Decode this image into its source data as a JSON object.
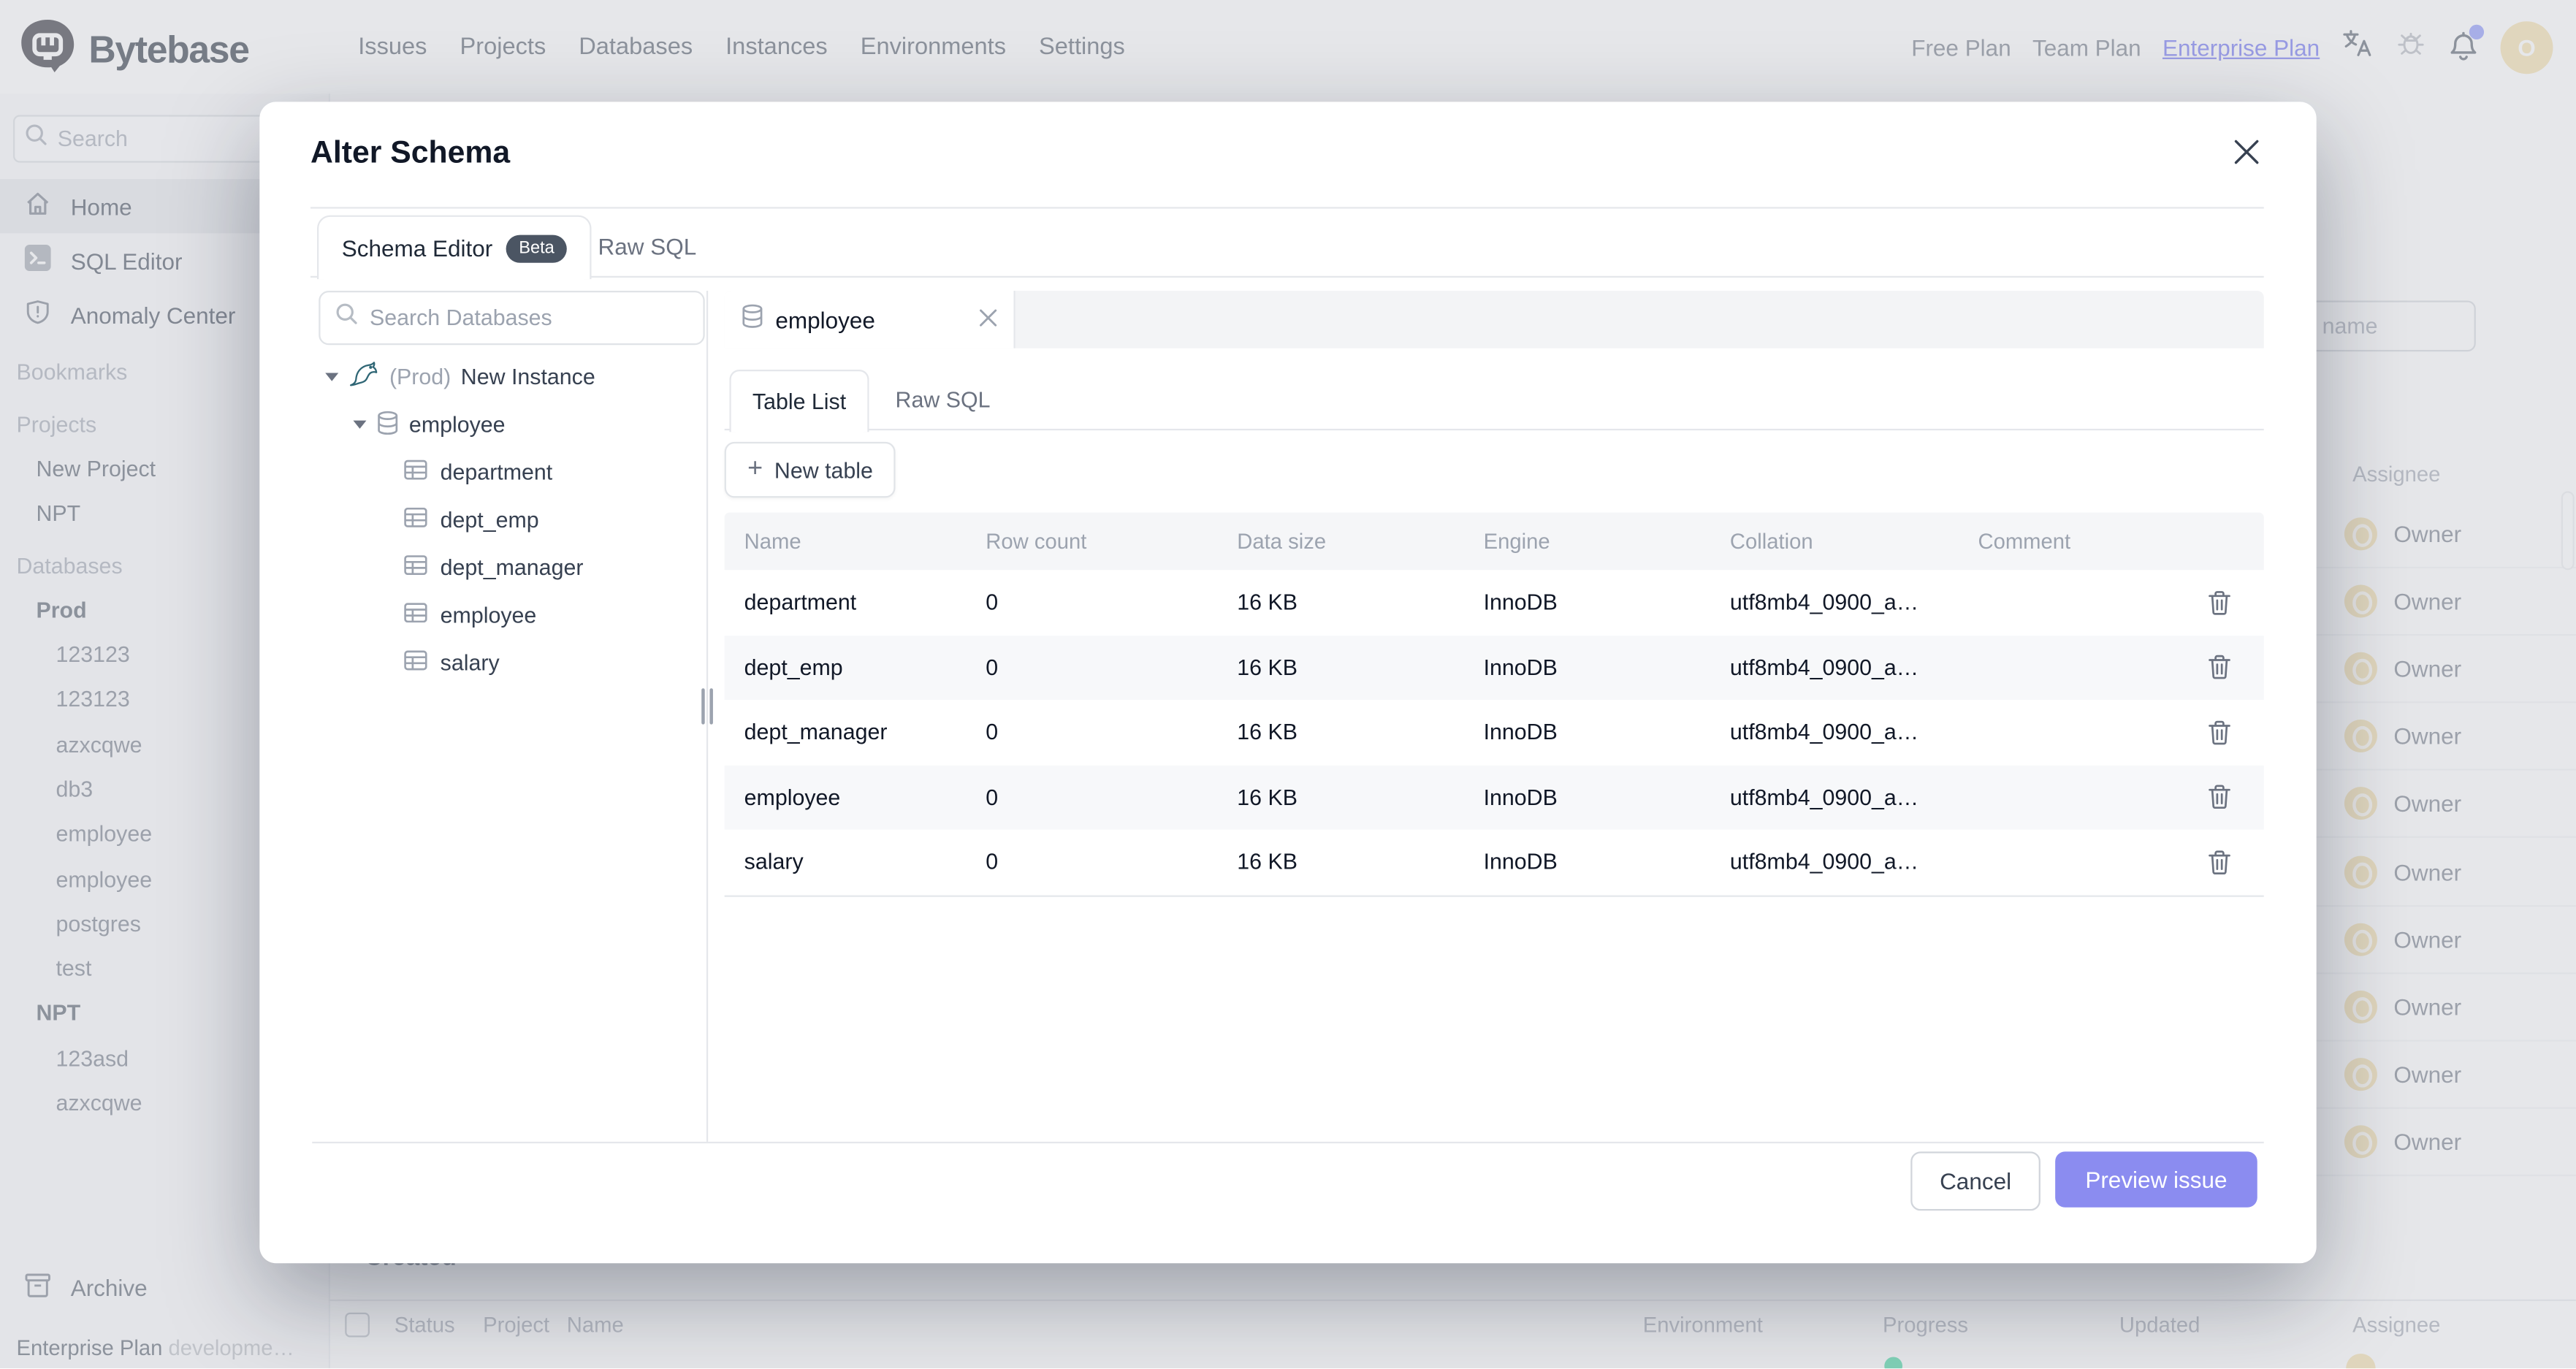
{
  "nav": {
    "items": [
      "Issues",
      "Projects",
      "Databases",
      "Instances",
      "Environments",
      "Settings"
    ],
    "plans": {
      "free": "Free Plan",
      "team": "Team Plan",
      "enterprise": "Enterprise Plan"
    },
    "brand": "Bytebase",
    "avatar_letter": "O"
  },
  "sidebar": {
    "search_placeholder": "Search",
    "items": [
      {
        "type": "item",
        "icon": "home-icon",
        "label": "Home",
        "active": true
      },
      {
        "type": "item",
        "icon": "terminal-icon",
        "label": "SQL Editor",
        "active": false
      },
      {
        "type": "item",
        "icon": "shield-icon",
        "label": "Anomaly Center",
        "active": false
      },
      {
        "type": "section",
        "label": "Bookmarks"
      },
      {
        "type": "section",
        "label": "Projects"
      },
      {
        "type": "l1",
        "label": "New Project"
      },
      {
        "type": "l1",
        "label": "NPT"
      },
      {
        "type": "section",
        "label": "Databases"
      },
      {
        "type": "env",
        "label": "Prod"
      },
      {
        "type": "db",
        "label": "123123"
      },
      {
        "type": "db",
        "label": "123123"
      },
      {
        "type": "db",
        "label": "azxcqwe"
      },
      {
        "type": "db",
        "label": "db3"
      },
      {
        "type": "db",
        "label": "employee"
      },
      {
        "type": "db",
        "label": "employee"
      },
      {
        "type": "db",
        "label": "postgres"
      },
      {
        "type": "db",
        "label": "test"
      },
      {
        "type": "env",
        "label": "NPT"
      },
      {
        "type": "db",
        "label": "123asd"
      },
      {
        "type": "db",
        "label": "azxcqwe"
      }
    ],
    "archive": "Archive",
    "plan_bold": "Enterprise Plan",
    "plan_rest": "developme…"
  },
  "modal": {
    "title": "Alter Schema",
    "tabs": {
      "schema_editor": "Schema Editor",
      "beta": "Beta",
      "raw_sql": "Raw SQL"
    },
    "left": {
      "search_placeholder": "Search Databases",
      "instance_env": "(Prod)",
      "instance_name": "New Instance",
      "database": "employee",
      "tables": [
        "department",
        "dept_emp",
        "dept_manager",
        "employee",
        "salary"
      ]
    },
    "right": {
      "db_tab": "employee",
      "tab_table_list": "Table List",
      "tab_raw_sql": "Raw SQL",
      "new_table": "New table",
      "columns": [
        "Name",
        "Row count",
        "Data size",
        "Engine",
        "Collation",
        "Comment"
      ],
      "rows": [
        {
          "name": "department",
          "row_count": "0",
          "data_size": "16 KB",
          "engine": "InnoDB",
          "collation": "utf8mb4_0900_a…",
          "comment": ""
        },
        {
          "name": "dept_emp",
          "row_count": "0",
          "data_size": "16 KB",
          "engine": "InnoDB",
          "collation": "utf8mb4_0900_a…",
          "comment": ""
        },
        {
          "name": "dept_manager",
          "row_count": "0",
          "data_size": "16 KB",
          "engine": "InnoDB",
          "collation": "utf8mb4_0900_a…",
          "comment": ""
        },
        {
          "name": "employee",
          "row_count": "0",
          "data_size": "16 KB",
          "engine": "InnoDB",
          "collation": "utf8mb4_0900_a…",
          "comment": ""
        },
        {
          "name": "salary",
          "row_count": "0",
          "data_size": "16 KB",
          "engine": "InnoDB",
          "collation": "utf8mb4_0900_a…",
          "comment": ""
        }
      ]
    },
    "footer": {
      "cancel": "Cancel",
      "preview": "Preview issue"
    }
  },
  "background": {
    "issue_search_placeholder": "h issue name",
    "assignee_header": "Assignee",
    "owners": [
      "Owner",
      "Owner",
      "Owner",
      "Owner",
      "Owner",
      "Owner",
      "Owner",
      "Owner",
      "Owner",
      "Owner"
    ],
    "created": "Created",
    "bottom_columns": [
      "Status",
      "Project",
      "Name",
      "Environment",
      "Progress",
      "Updated",
      "Assignee"
    ]
  },
  "colors": {
    "accent": "#6366f1",
    "preview_button": "#8b8cf0",
    "beta_badge": "#4b5563",
    "avatar": "#f3dda4",
    "notification_dot": "#818cf8",
    "status_green": "#34d399"
  }
}
